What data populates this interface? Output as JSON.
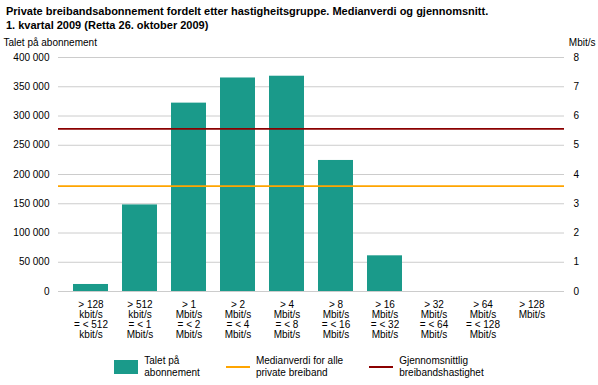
{
  "chart_data": {
    "type": "bar",
    "title": "Private breibandsabonnement fordelt etter hastigheitsgruppe. Medianverdi og gjennomsnitt.",
    "subtitle": "1. kvartal 2009 (Retta 26. oktober 2009)",
    "categories": [
      "> 128\nkbit/s\n= < 512\nkbit/s",
      "> 512\nkbit/s\n= < 1\nMbit/s",
      "> 1\nMbit/s\n= < 2\nMbit/s",
      "> 2\nMbit/s\n= < 4\nMbit/s",
      "> 4\nMbit/s\n= < 8\nMbit/s",
      "> 8\nMbit/s\n= < 16\nMbit/s",
      "> 16\nMbit/s\n= < 32\nMbit/s",
      "> 32\nMbit/s\n= < 64\nMbit/s",
      "> 64\nMbit/s\n= < 128\nMbit/s",
      "> 128\nMbit/s"
    ],
    "series": [
      {
        "name": "Talet på\nabonnement",
        "type": "bar",
        "color": "#1a9a8a",
        "values": [
          12000,
          148000,
          322000,
          365000,
          368000,
          224000,
          61000,
          0,
          0,
          0
        ]
      }
    ],
    "reference_lines": [
      {
        "name": "Medianverdi for alle\nprivate breiband",
        "color": "#FFA500",
        "value": 180000
      },
      {
        "name": "Gjennomsnittlig\nbreibandshastighet",
        "color": "#8B0000",
        "value": 278000
      }
    ],
    "ylabel": "Talet på abonnement",
    "y2label": "Mbit/s",
    "ylim": [
      0,
      400000
    ],
    "yticks": [
      0,
      {
        "value": 50000,
        "label": "50 000"
      },
      {
        "value": 100000,
        "label": "100 000"
      },
      {
        "value": 150000,
        "label": "150 000"
      },
      {
        "value": 200000,
        "label": "200 000"
      },
      {
        "value": 250000,
        "label": "250 000"
      },
      {
        "value": 300000,
        "label": "300 000"
      },
      {
        "value": 350000,
        "label": "350 000"
      },
      {
        "value": 400000,
        "label": "400 000"
      }
    ],
    "y2lim": [
      0,
      8
    ],
    "y2ticks": [
      0,
      1,
      2,
      3,
      4,
      5,
      6,
      7,
      8
    ],
    "grid": true,
    "legend": "bottom"
  }
}
